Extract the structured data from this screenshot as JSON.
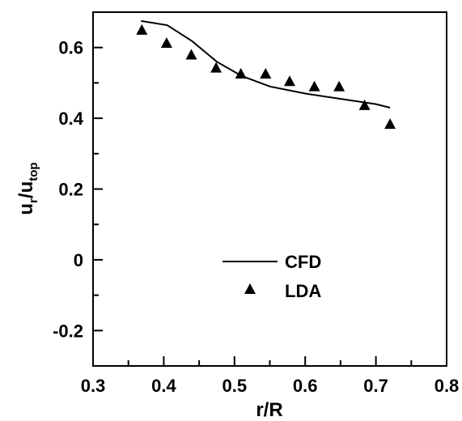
{
  "chart_data": {
    "type": "line",
    "xlabel": "r/R",
    "ylabel_main": "u",
    "ylabel_sub1": "r",
    "ylabel_mid": "/u",
    "ylabel_sub2": "top",
    "xlim": [
      0.3,
      0.8
    ],
    "ylim": [
      -0.3,
      0.7
    ],
    "xticks": [
      0.3,
      0.4,
      0.5,
      0.6,
      0.7,
      0.8
    ],
    "xtick_labels": [
      "0.3",
      "0.4",
      "0.5",
      "0.6",
      "0.7",
      "0.8"
    ],
    "yticks": [
      -0.2,
      0,
      0.2,
      0.4,
      0.6
    ],
    "ytick_labels": [
      "-0.2",
      "0",
      "0.2",
      "0.4",
      "0.6"
    ],
    "x_minor_ticks": [
      0.35,
      0.45,
      0.55,
      0.65,
      0.75
    ],
    "y_minor_ticks": [
      -0.3,
      -0.1,
      0.1,
      0.3,
      0.5
    ],
    "legend_position": "center",
    "grid": false,
    "series": [
      {
        "name": "CFD",
        "kind": "line",
        "x": [
          0.368,
          0.405,
          0.44,
          0.475,
          0.51,
          0.55,
          0.6,
          0.65,
          0.7,
          0.72
        ],
        "y": [
          0.675,
          0.663,
          0.618,
          0.56,
          0.52,
          0.49,
          0.47,
          0.455,
          0.44,
          0.43
        ]
      },
      {
        "name": "LDA",
        "kind": "scatter",
        "marker": "triangle",
        "x": [
          0.369,
          0.404,
          0.439,
          0.474,
          0.509,
          0.544,
          0.578,
          0.613,
          0.648,
          0.684,
          0.72
        ],
        "y": [
          0.65,
          0.613,
          0.58,
          0.543,
          0.526,
          0.526,
          0.505,
          0.49,
          0.49,
          0.437,
          0.384
        ]
      }
    ]
  }
}
